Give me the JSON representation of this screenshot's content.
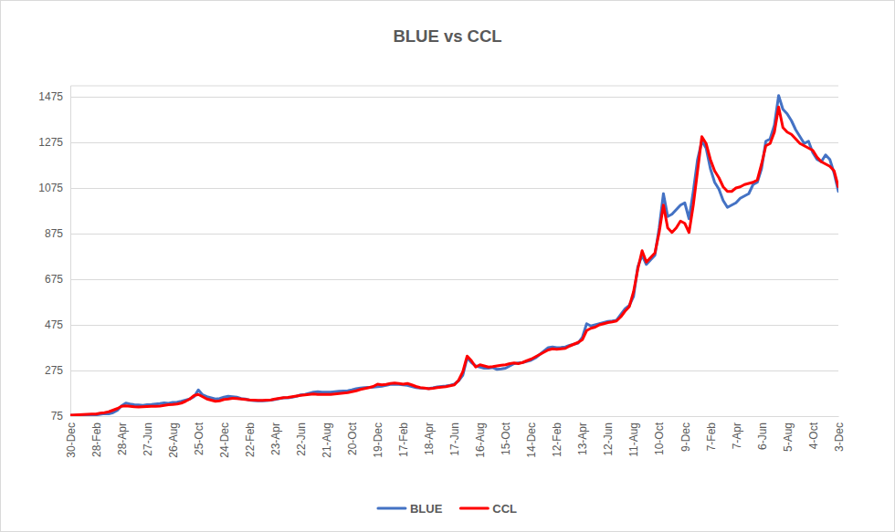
{
  "chart_data": {
    "type": "line",
    "title": "BLUE vs CCL",
    "categories": [
      "30-Dec",
      null,
      null,
      null,
      null,
      null,
      "28-Feb",
      null,
      null,
      null,
      null,
      null,
      "28-Apr",
      null,
      null,
      null,
      null,
      null,
      "27-Jun",
      null,
      null,
      null,
      null,
      null,
      "26-Aug",
      null,
      null,
      null,
      null,
      null,
      "25-Oct",
      null,
      null,
      null,
      null,
      null,
      "24-Dec",
      null,
      null,
      null,
      null,
      null,
      "22-Feb",
      null,
      null,
      null,
      null,
      null,
      "23-Apr",
      null,
      null,
      null,
      null,
      null,
      "22-Jun",
      null,
      null,
      null,
      null,
      null,
      "21-Aug",
      null,
      null,
      null,
      null,
      null,
      "20-Oct",
      null,
      null,
      null,
      null,
      null,
      "19-Dec",
      null,
      null,
      null,
      null,
      null,
      "17-Feb",
      null,
      null,
      null,
      null,
      null,
      "18-Apr",
      null,
      null,
      null,
      null,
      null,
      "17-Jun",
      null,
      null,
      null,
      null,
      null,
      "16-Aug",
      null,
      null,
      null,
      null,
      null,
      "15-Oct",
      null,
      null,
      null,
      null,
      null,
      "14-Dec",
      null,
      null,
      null,
      null,
      null,
      "12-Feb",
      null,
      null,
      null,
      null,
      null,
      "13-Apr",
      null,
      null,
      null,
      null,
      null,
      "12-Jun",
      null,
      null,
      null,
      null,
      null,
      "11-Aug",
      null,
      null,
      null,
      null,
      null,
      "10-Oct",
      null,
      null,
      null,
      null,
      null,
      "9-Dec",
      null,
      null,
      null,
      null,
      null,
      "7-Feb",
      null,
      null,
      null,
      null,
      null,
      "7-Apr",
      null,
      null,
      null,
      null,
      null,
      "6-Jun",
      null,
      null,
      null,
      null,
      null,
      "5-Aug",
      null,
      null,
      null,
      null,
      null,
      "4-Oct",
      null,
      null,
      null,
      null,
      null,
      "3-Dec"
    ],
    "series": [
      {
        "name": "BLUE",
        "color": "#4472c4",
        "values": [
          78,
          78,
          79,
          79,
          80,
          80,
          80,
          83,
          86,
          85,
          90,
          100,
          120,
          132,
          128,
          125,
          124,
          122,
          125,
          126,
          128,
          130,
          133,
          131,
          135,
          136,
          140,
          145,
          150,
          160,
          190,
          168,
          160,
          155,
          150,
          152,
          158,
          162,
          160,
          158,
          152,
          150,
          145,
          143,
          142,
          142,
          143,
          145,
          148,
          152,
          155,
          155,
          158,
          162,
          168,
          170,
          175,
          180,
          182,
          180,
          180,
          180,
          182,
          184,
          185,
          186,
          190,
          195,
          198,
          200,
          201,
          202,
          204,
          206,
          210,
          214,
          215,
          214,
          212,
          210,
          205,
          200,
          198,
          197,
          196,
          199,
          203,
          205,
          207,
          210,
          215,
          230,
          255,
          330,
          310,
          295,
          290,
          285,
          285,
          288,
          280,
          282,
          285,
          295,
          305,
          308,
          310,
          315,
          320,
          330,
          345,
          360,
          375,
          378,
          375,
          376,
          378,
          385,
          390,
          395,
          420,
          480,
          470,
          475,
          480,
          485,
          490,
          492,
          495,
          520,
          545,
          560,
          600,
          730,
          780,
          740,
          760,
          780,
          900,
          1050,
          950,
          960,
          980,
          1000,
          1010,
          940,
          1060,
          1200,
          1280,
          1250,
          1160,
          1100,
          1070,
          1020,
          990,
          1000,
          1010,
          1030,
          1040,
          1050,
          1090,
          1100,
          1160,
          1280,
          1290,
          1350,
          1480,
          1420,
          1400,
          1370,
          1330,
          1300,
          1270,
          1280,
          1230,
          1200,
          1190,
          1220,
          1200,
          1140,
          1060
        ]
      },
      {
        "name": "CCL",
        "color": "#ff0000",
        "values": [
          79,
          80,
          81,
          82,
          83,
          84,
          84,
          88,
          90,
          94,
          101,
          108,
          118,
          120,
          118,
          116,
          115,
          116,
          117,
          118,
          118,
          119,
          122,
          125,
          126,
          128,
          132,
          140,
          150,
          165,
          170,
          160,
          150,
          145,
          140,
          142,
          148,
          150,
          153,
          152,
          150,
          148,
          146,
          145,
          144,
          144,
          145,
          146,
          150,
          153,
          156,
          157,
          160,
          163,
          166,
          168,
          170,
          172,
          170,
          170,
          170,
          170,
          172,
          174,
          176,
          178,
          182,
          186,
          192,
          196,
          200,
          205,
          215,
          212,
          214,
          218,
          220,
          218,
          215,
          218,
          212,
          205,
          200,
          198,
          195,
          197,
          200,
          202,
          204,
          208,
          212,
          232,
          270,
          338,
          318,
          290,
          300,
          295,
          290,
          292,
          295,
          298,
          300,
          305,
          308,
          305,
          310,
          318,
          325,
          335,
          345,
          355,
          365,
          370,
          368,
          370,
          372,
          382,
          390,
          398,
          410,
          450,
          460,
          465,
          475,
          480,
          485,
          488,
          492,
          510,
          535,
          555,
          620,
          720,
          800,
          750,
          770,
          790,
          880,
          1000,
          900,
          880,
          900,
          930,
          920,
          880,
          1000,
          1150,
          1300,
          1270,
          1200,
          1150,
          1120,
          1080,
          1060,
          1060,
          1075,
          1080,
          1090,
          1095,
          1100,
          1110,
          1180,
          1260,
          1270,
          1320,
          1430,
          1340,
          1320,
          1310,
          1290,
          1270,
          1260,
          1250,
          1240,
          1210,
          1190,
          1180,
          1170,
          1150,
          1080
        ]
      }
    ],
    "ylim": [
      75,
      1525
    ],
    "yticks": [
      75,
      275,
      475,
      675,
      875,
      1075,
      1275,
      1475
    ],
    "grid": true,
    "legend": "bottom"
  }
}
